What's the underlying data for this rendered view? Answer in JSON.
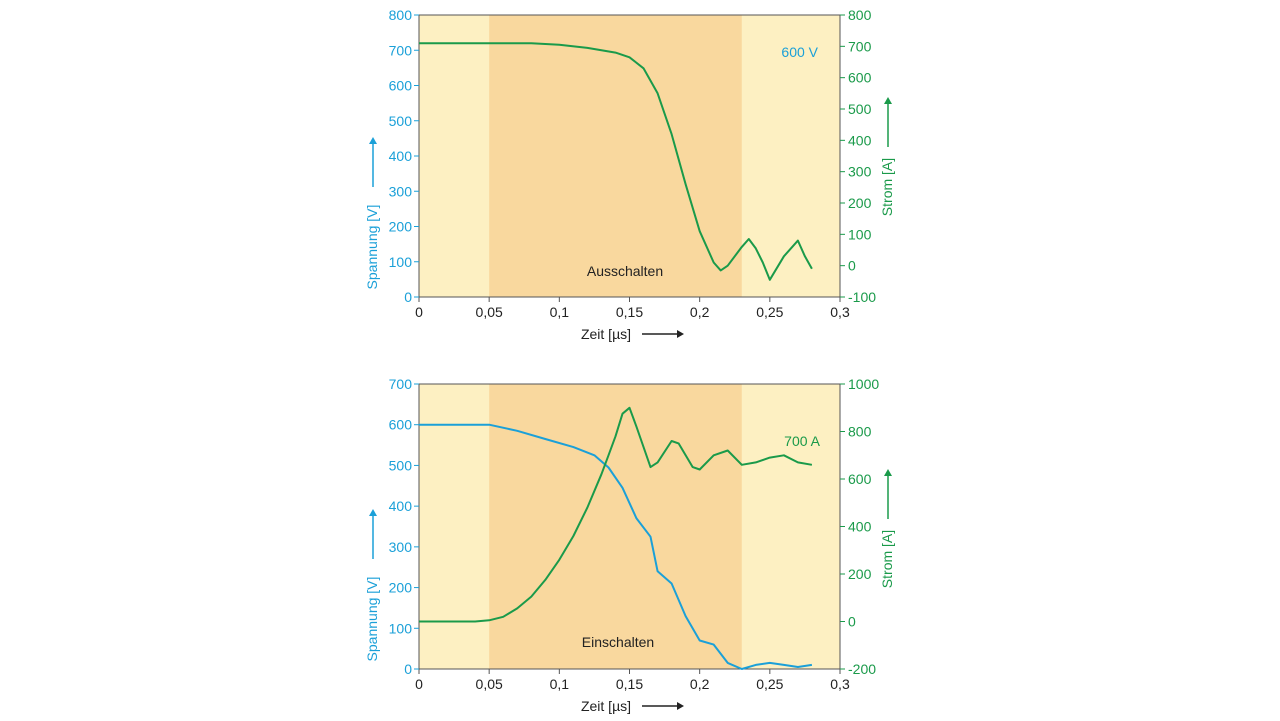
{
  "colors": {
    "voltage": "#1ba0d8",
    "current": "#1a9a4a",
    "outer_band": "#fdf0c2",
    "inner_band": "#f9d89e",
    "frame": "#555555"
  },
  "chart_data": [
    {
      "type": "line",
      "annotation": "Ausschalten",
      "corner_label": "600 V",
      "xlabel": "Zeit [µs]",
      "ylabel_left": "Spannung [V]",
      "ylabel_right": "Strom [A]",
      "xlim": [
        0,
        0.3
      ],
      "ylim_left": [
        0,
        800
      ],
      "ylim_right": [
        -100,
        800
      ],
      "x_ticks": [
        "0",
        "0,05",
        "0,1",
        "0,15",
        "0,2",
        "0,25",
        "0,3"
      ],
      "y_ticks_left": [
        "0",
        "100",
        "200",
        "300",
        "400",
        "500",
        "600",
        "700",
        "800"
      ],
      "y_ticks_right": [
        "-100",
        "0",
        "100",
        "200",
        "300",
        "400",
        "500",
        "600",
        "700",
        "800"
      ],
      "bands": {
        "outer": [
          0,
          0.23
        ],
        "inner": [
          0.05,
          0.23
        ]
      },
      "series": [
        {
          "axis": "right",
          "color": "#1a9a4a",
          "x": [
            0,
            0.02,
            0.05,
            0.08,
            0.1,
            0.12,
            0.14,
            0.15,
            0.16,
            0.17,
            0.18,
            0.19,
            0.2,
            0.21,
            0.215,
            0.22,
            0.23,
            0.235,
            0.24,
            0.245,
            0.25,
            0.26,
            0.27,
            0.275,
            0.28
          ],
          "values": [
            710,
            710,
            710,
            710,
            705,
            695,
            680,
            665,
            630,
            550,
            420,
            260,
            110,
            10,
            -15,
            0,
            60,
            85,
            55,
            10,
            -45,
            30,
            80,
            30,
            -10
          ]
        }
      ]
    },
    {
      "type": "line",
      "annotation": "Einschalten",
      "corner_label": "700 A",
      "xlabel": "Zeit [µs]",
      "ylabel_left": "Spannung [V]",
      "ylabel_right": "Strom [A]",
      "xlim": [
        0,
        0.3
      ],
      "ylim_left": [
        0,
        700
      ],
      "ylim_right": [
        -200,
        1000
      ],
      "x_ticks": [
        "0",
        "0,05",
        "0,1",
        "0,15",
        "0,2",
        "0,25",
        "0,3"
      ],
      "y_ticks_left": [
        "0",
        "100",
        "200",
        "300",
        "400",
        "500",
        "600",
        "700"
      ],
      "y_ticks_right": [
        "-200",
        "0",
        "200",
        "400",
        "600",
        "800",
        "1000"
      ],
      "bands": {
        "outer": [
          0,
          0.23
        ],
        "inner": [
          0.05,
          0.23
        ]
      },
      "series": [
        {
          "axis": "left",
          "color": "#1ba0d8",
          "x": [
            0,
            0.03,
            0.05,
            0.07,
            0.09,
            0.11,
            0.125,
            0.135,
            0.145,
            0.155,
            0.165,
            0.17,
            0.18,
            0.19,
            0.2,
            0.21,
            0.22,
            0.23,
            0.24,
            0.25,
            0.26,
            0.27,
            0.28
          ],
          "values": [
            600,
            600,
            600,
            585,
            565,
            545,
            525,
            495,
            445,
            370,
            325,
            240,
            210,
            130,
            70,
            60,
            15,
            0,
            10,
            15,
            10,
            5,
            10
          ]
        },
        {
          "axis": "right",
          "color": "#1a9a4a",
          "x": [
            0,
            0.04,
            0.05,
            0.06,
            0.07,
            0.08,
            0.09,
            0.1,
            0.11,
            0.12,
            0.13,
            0.135,
            0.14,
            0.145,
            0.15,
            0.155,
            0.165,
            0.17,
            0.18,
            0.185,
            0.195,
            0.2,
            0.21,
            0.22,
            0.23,
            0.24,
            0.25,
            0.26,
            0.27,
            0.28
          ],
          "values": [
            0,
            0,
            5,
            20,
            55,
            105,
            175,
            260,
            360,
            480,
            620,
            700,
            780,
            875,
            900,
            820,
            650,
            670,
            760,
            750,
            650,
            640,
            700,
            720,
            660,
            670,
            690,
            700,
            670,
            660
          ]
        }
      ]
    }
  ]
}
